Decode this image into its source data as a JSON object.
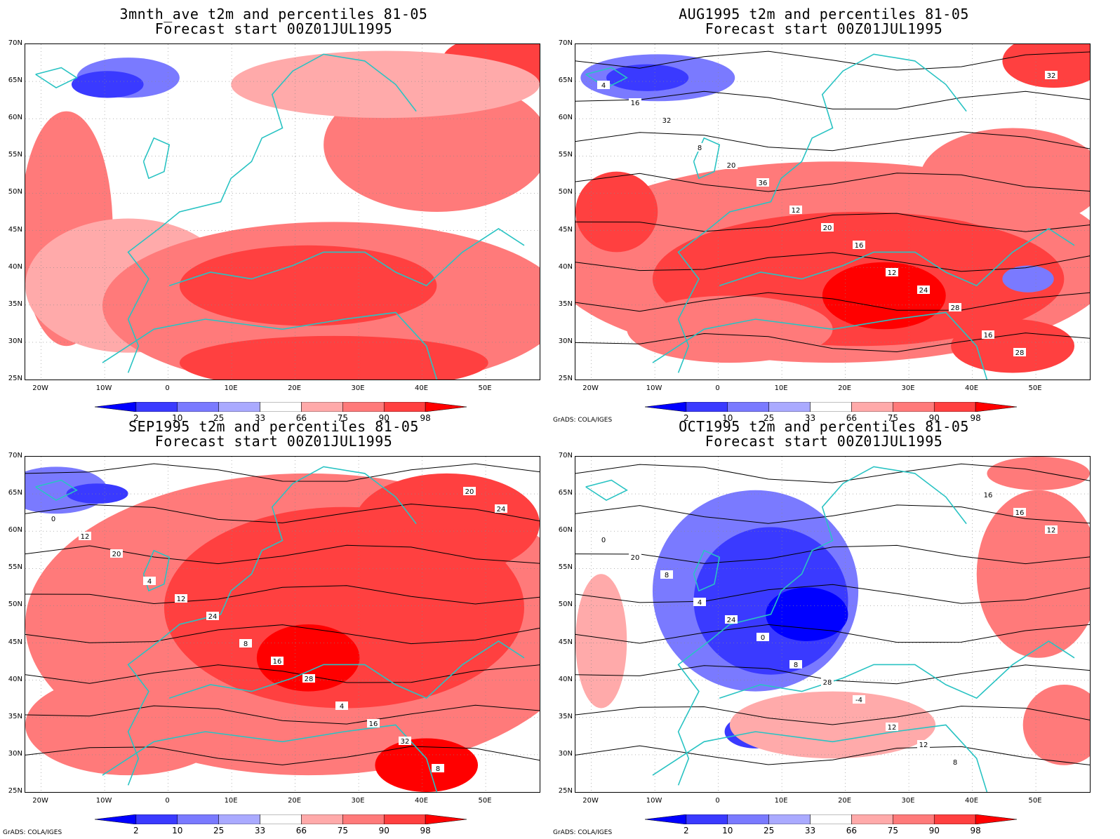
{
  "panels": [
    {
      "id": "p1",
      "title1": "3mnth_ave t2m and percentiles 81-05",
      "title2": "Forecast start 00Z01JUL1995",
      "credit": "",
      "variant": "warm-north-light",
      "contours": []
    },
    {
      "id": "p2",
      "title1": "AUG1995 t2m and percentiles 81-05",
      "title2": "Forecast start 00Z01JUL1995",
      "credit": "GrADS: COLA/IGES",
      "variant": "warm-south",
      "contours": [
        "4",
        "8",
        "12",
        "12",
        "16",
        "16",
        "20",
        "20",
        "24",
        "28",
        "32",
        "36",
        "16",
        "28",
        "32"
      ]
    },
    {
      "id": "p3",
      "title1": "SEP1995 t2m and percentiles 81-05",
      "title2": "Forecast start 00Z01JUL1995",
      "credit": "GrADS: COLA/IGES",
      "variant": "warm-all",
      "contours": [
        "0",
        "4",
        "8",
        "4",
        "8",
        "12",
        "12",
        "16",
        "16",
        "20",
        "20",
        "24",
        "28",
        "32",
        "24"
      ]
    },
    {
      "id": "p4",
      "title1": "OCT1995 t2m and percentiles 81-05",
      "title2": "Forecast start 00Z01JUL1995",
      "credit": "GrADS: COLA/IGES",
      "variant": "cold-center",
      "contours": [
        "0",
        "4",
        "8",
        "12",
        "16",
        "20",
        "24",
        "28",
        "12",
        "16",
        "8",
        "0",
        "-4",
        "8",
        "12"
      ]
    }
  ],
  "lat_labels": [
    "70N",
    "65N",
    "60N",
    "55N",
    "50N",
    "45N",
    "40N",
    "35N",
    "30N",
    "25N"
  ],
  "lon_labels": [
    "20W",
    "10W",
    "0",
    "10E",
    "20E",
    "30E",
    "40E",
    "50E"
  ],
  "colorbar": {
    "labels": [
      "2",
      "10",
      "25",
      "33",
      "66",
      "75",
      "90",
      "98"
    ],
    "colors": [
      "#0000ff",
      "#3a3aff",
      "#7a7aff",
      "#aaaaff",
      "#ffffff",
      "#ffaaaa",
      "#ff7a7a",
      "#ff4040",
      "#ff0000"
    ]
  },
  "colors": {
    "coast": "#29c3c3",
    "contour": "#000000"
  }
}
